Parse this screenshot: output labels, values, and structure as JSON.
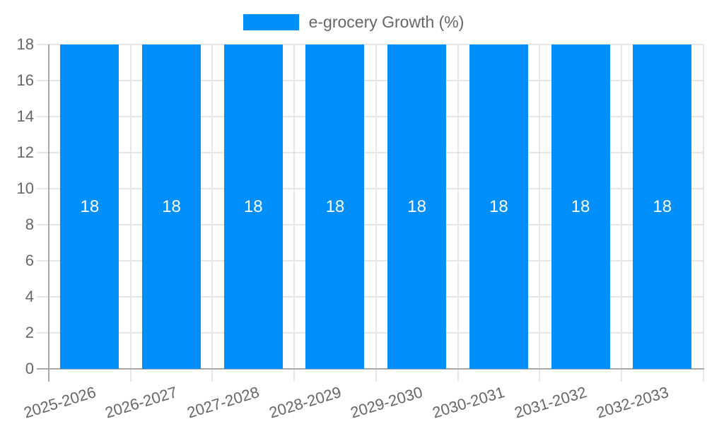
{
  "chart_data": {
    "type": "bar",
    "title": "",
    "legend_position": "top",
    "series": [
      {
        "name": "e-grocery Growth (%)",
        "values": [
          18,
          18,
          18,
          18,
          18,
          18,
          18,
          18
        ]
      }
    ],
    "categories": [
      "2025-2026",
      "2026-2027",
      "2027-2028",
      "2028-2029",
      "2029-2030",
      "2030-2031",
      "2031-2032",
      "2032-2033"
    ],
    "data_labels": [
      "18",
      "18",
      "18",
      "18",
      "18",
      "18",
      "18",
      "18"
    ],
    "yticks": [
      0,
      2,
      4,
      6,
      8,
      10,
      12,
      14,
      16,
      18
    ],
    "ylim": [
      0,
      18
    ],
    "xlabel": "",
    "ylabel": "",
    "grid": true,
    "colors": {
      "bar": "#008FFB",
      "grid": "#E6E6E6",
      "axis": "#A8A8A8",
      "tick_text": "#666666",
      "data_label": "#FFFFFF",
      "background": "#FFFFFF"
    }
  }
}
